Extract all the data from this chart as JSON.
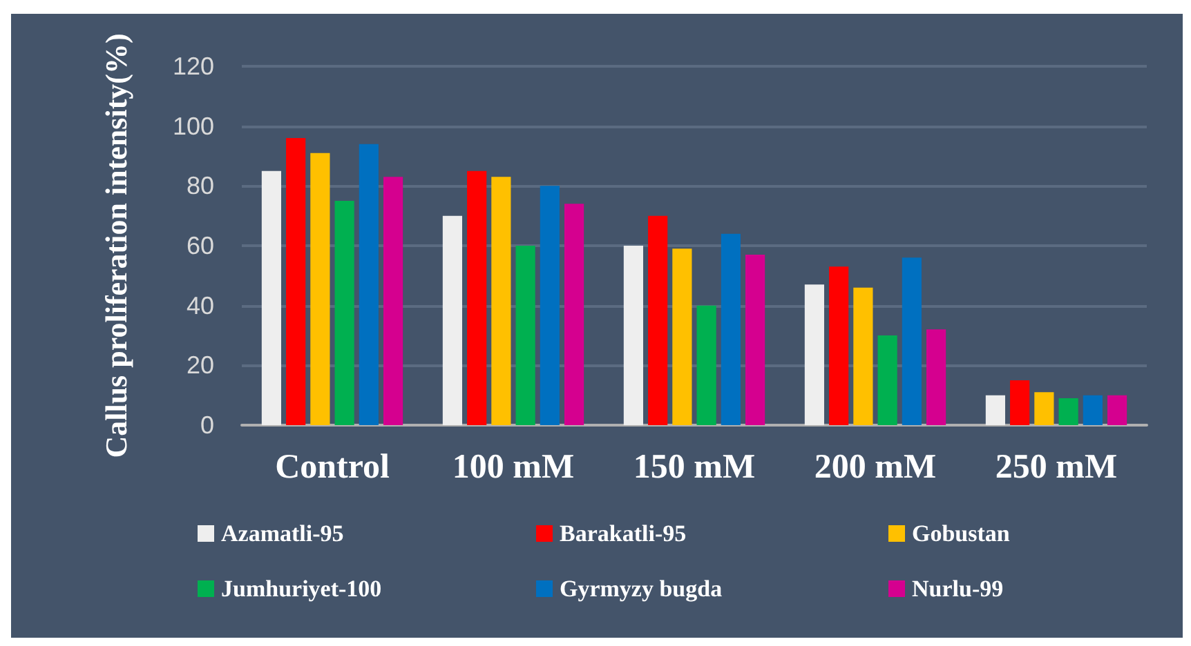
{
  "chart_data": {
    "type": "bar",
    "ylabel": "Callus proliferation intensity(%)",
    "categories": [
      "Control",
      "100 mM",
      "150 mM",
      "200 mM",
      "250 mM"
    ],
    "series": [
      {
        "name": "Azamatli-95",
        "color": "#eeeeee",
        "values": [
          85,
          70,
          60,
          47,
          10
        ]
      },
      {
        "name": "Barakatli-95",
        "color": "#ff0000",
        "values": [
          96,
          85,
          70,
          53,
          15
        ]
      },
      {
        "name": "Gobustan",
        "color": "#ffc000",
        "values": [
          91,
          83,
          59,
          46,
          11
        ]
      },
      {
        "name": "Jumhuriyet-100",
        "color": "#00b050",
        "values": [
          75,
          60,
          40,
          30,
          9
        ]
      },
      {
        "name": "Gyrmyzy bugda",
        "color": "#0070c0",
        "values": [
          94,
          80,
          64,
          56,
          10
        ]
      },
      {
        "name": "Nurlu-99",
        "color": "#d5008f",
        "values": [
          83,
          74,
          57,
          32,
          10
        ]
      }
    ],
    "ylim": [
      0,
      120
    ],
    "yticks": [
      0,
      20,
      40,
      60,
      80,
      100,
      120
    ],
    "grid": "y",
    "legend": "bottom"
  }
}
